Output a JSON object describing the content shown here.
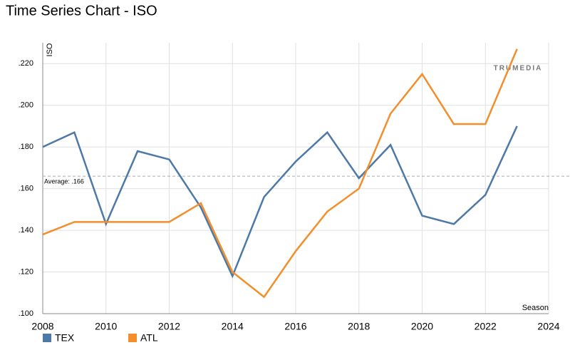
{
  "chart_data": {
    "type": "line",
    "title": "Time Series Chart - ISO",
    "y_label": "ISO",
    "x_label": "Season",
    "watermark": "TRUMEDIA",
    "x": [
      2008,
      2009,
      2010,
      2011,
      2012,
      2013,
      2014,
      2015,
      2016,
      2017,
      2018,
      2019,
      2020,
      2021,
      2022,
      2023
    ],
    "series": [
      {
        "name": "TEX",
        "color": "#4e79a7",
        "values": [
          0.18,
          0.187,
          0.143,
          0.178,
          0.174,
          0.151,
          0.118,
          0.156,
          0.173,
          0.187,
          0.165,
          0.181,
          0.147,
          0.143,
          0.157,
          0.19
        ]
      },
      {
        "name": "ATL",
        "color": "#f28e2b",
        "values": [
          0.138,
          0.144,
          0.144,
          0.144,
          0.144,
          0.153,
          0.12,
          0.108,
          0.13,
          0.149,
          0.16,
          0.196,
          0.215,
          0.191,
          0.191,
          0.227
        ]
      }
    ],
    "average": {
      "value": 0.166,
      "label": "Average: .166"
    },
    "xlim": [
      2008,
      2024
    ],
    "xticks": [
      2008,
      2010,
      2012,
      2014,
      2016,
      2018,
      2020,
      2022,
      2024
    ],
    "ylim": [
      0.1,
      0.23
    ],
    "yticks": [
      {
        "value": 0.1,
        "label": ".100"
      },
      {
        "value": 0.12,
        "label": ".120"
      },
      {
        "value": 0.14,
        "label": ".140"
      },
      {
        "value": 0.16,
        "label": ".160"
      },
      {
        "value": 0.18,
        "label": ".180"
      },
      {
        "value": 0.2,
        "label": ".200"
      },
      {
        "value": 0.22,
        "label": ".220"
      }
    ],
    "grid": true,
    "legend": "bottom-left"
  }
}
